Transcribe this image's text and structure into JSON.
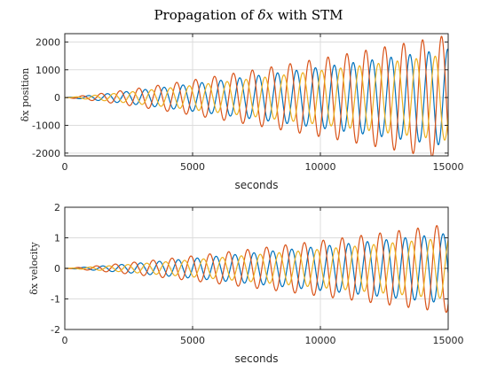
{
  "figure": {
    "title": "Propagation of δx with STM",
    "title_prefix": "Propagation of",
    "title_symbol": "δx",
    "title_suffix": "with STM"
  },
  "chart_data": [
    {
      "type": "line",
      "xlabel": "seconds",
      "ylabel": "δx position",
      "xlim": [
        0,
        15000
      ],
      "ylim": [
        -2100,
        2300
      ],
      "xticks": [
        0,
        5000,
        10000,
        15000
      ],
      "xtick_labels": [
        "0",
        "5000",
        "10000",
        "15000"
      ],
      "yticks": [
        -2000,
        -1000,
        0,
        1000,
        2000
      ],
      "ytick_labels": [
        "-2000",
        "-1000",
        "0",
        "1000",
        "2000"
      ],
      "grid": true,
      "curve_model": {
        "period_s": 740,
        "growth_exponent": 1.15,
        "t_max": 15000,
        "phase_offsets_rad": [
          0,
          2.09,
          4.19
        ]
      },
      "series": [
        {
          "color": "#0072BD",
          "amplitude_at_t_max": 1750
        },
        {
          "color": "#D95319",
          "amplitude_at_t_max": 2250
        },
        {
          "color": "#EDB120",
          "amplitude_at_t_max": 1550
        }
      ]
    },
    {
      "type": "line",
      "xlabel": "seconds",
      "ylabel": "δx velocity",
      "xlim": [
        0,
        15000
      ],
      "ylim": [
        -2,
        2
      ],
      "xticks": [
        0,
        5000,
        10000,
        15000
      ],
      "xtick_labels": [
        "0",
        "5000",
        "10000",
        "15000"
      ],
      "yticks": [
        -2,
        -1,
        0,
        1,
        2
      ],
      "ytick_labels": [
        "-2",
        "-1",
        "0",
        "1",
        "2"
      ],
      "grid": true,
      "curve_model": {
        "period_s": 740,
        "growth_exponent": 1.15,
        "t_max": 15000,
        "phase_offsets_rad": [
          1.57,
          3.66,
          5.76
        ]
      },
      "series": [
        {
          "color": "#0072BD",
          "amplitude_at_t_max": 1.15
        },
        {
          "color": "#D95319",
          "amplitude_at_t_max": 1.45
        },
        {
          "color": "#EDB120",
          "amplitude_at_t_max": 1.0
        }
      ]
    }
  ]
}
